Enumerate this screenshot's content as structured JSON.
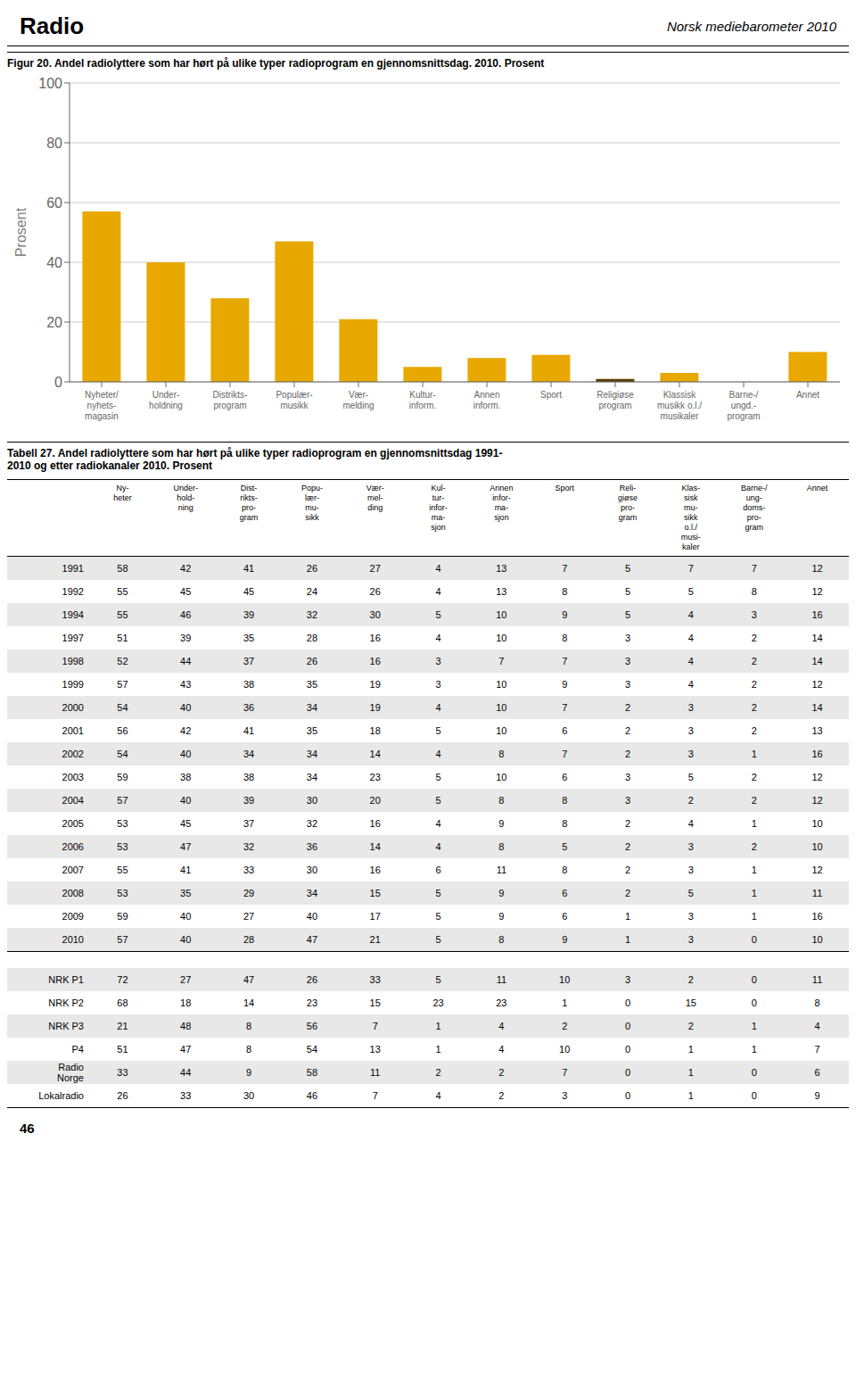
{
  "chart_data": [
    {
      "type": "bar",
      "title": "Figur 20. Andel radiolyttere som har hørt på ulike typer radioprogram en gjennomsnittsdag. 2010. Prosent",
      "annotations": [
        "Radio",
        "Norsk mediebarometer 2010",
        "46"
      ],
      "ylabel": "Prosent",
      "categories": [
        "Nyheter/\nnyhets-\nmagasin",
        "Under-\nholdning",
        "Distrikts-\nprogram",
        "Populær-\nmusikk",
        "Vær-\nmelding",
        "Kultur-\ninform.",
        "Annen\ninform.",
        "Sport",
        "Religiøse\nprogram",
        "Klassisk\nmusikk o.l./\nmusikaler",
        "Barne-/\nungd.-\nprogram",
        "Annet"
      ],
      "values": [
        57,
        40,
        28,
        47,
        21,
        5,
        8,
        9,
        1,
        3,
        0,
        10
      ],
      "colors": [
        "#E8A800",
        "#E8A800",
        "#E8A800",
        "#E8A800",
        "#E8A800",
        "#E8A800",
        "#E8A800",
        "#E8A800",
        "#5C3D00",
        "#E8A800",
        "#5C3D00",
        "#E8A800"
      ],
      "ylim": [
        0,
        100
      ],
      "yticks": [
        0,
        20,
        40,
        60,
        80,
        100
      ],
      "grid": true
    },
    {
      "type": "table",
      "title": "Tabell 27. Andel radiolyttere som har hørt på ulike typer radioprogram en gjennomsnittsdag 1991-\n2010 og etter radiokanaler 2010. Prosent",
      "columns": [
        "Ny-\nheter",
        "Under-\nhold-\nning",
        "Dist-\nrikts-\npro-\ngram",
        "Popu-\nlær-\nmu-\nsikk",
        "Vær-\nmel-\nding",
        "Kul-\ntur-\ninfor-\nma-\nsjon",
        "Annen\ninfor-\nma-\nsjon",
        "Sport",
        "Reli-\ngiøse\npro-\ngram",
        "Klas-\nsisk\nmu-\nsikk\no.l./\nmusi-\nkaler",
        "Barne-/\nung-\ndoms-\npro-\ngram",
        "Annet"
      ],
      "sections": [
        {
          "categories": [
            "1991",
            "1992",
            "1994",
            "1997",
            "1998",
            "1999",
            "2000",
            "2001",
            "2002",
            "2003",
            "2004",
            "2005",
            "2006",
            "2007",
            "2008",
            "2009",
            "2010"
          ],
          "values": [
            [
              58,
              42,
              41,
              26,
              27,
              4,
              13,
              7,
              5,
              7,
              7,
              12
            ],
            [
              55,
              45,
              45,
              24,
              26,
              4,
              13,
              8,
              5,
              5,
              8,
              12
            ],
            [
              55,
              46,
              39,
              32,
              30,
              5,
              10,
              9,
              5,
              4,
              3,
              16
            ],
            [
              51,
              39,
              35,
              28,
              16,
              4,
              10,
              8,
              3,
              4,
              2,
              14
            ],
            [
              52,
              44,
              37,
              26,
              16,
              3,
              7,
              7,
              3,
              4,
              2,
              14
            ],
            [
              57,
              43,
              38,
              35,
              19,
              3,
              10,
              9,
              3,
              4,
              2,
              12
            ],
            [
              54,
              40,
              36,
              34,
              19,
              4,
              10,
              7,
              2,
              3,
              2,
              14
            ],
            [
              56,
              42,
              41,
              35,
              18,
              5,
              10,
              6,
              2,
              3,
              2,
              13
            ],
            [
              54,
              40,
              34,
              34,
              14,
              4,
              8,
              7,
              2,
              3,
              1,
              16
            ],
            [
              59,
              38,
              38,
              34,
              23,
              5,
              10,
              6,
              3,
              5,
              2,
              12
            ],
            [
              57,
              40,
              39,
              30,
              20,
              5,
              8,
              8,
              3,
              2,
              2,
              12
            ],
            [
              53,
              45,
              37,
              32,
              16,
              4,
              9,
              8,
              2,
              4,
              1,
              10
            ],
            [
              53,
              47,
              32,
              36,
              14,
              4,
              8,
              5,
              2,
              3,
              2,
              10
            ],
            [
              55,
              41,
              33,
              30,
              16,
              6,
              11,
              8,
              2,
              3,
              1,
              12
            ],
            [
              53,
              35,
              29,
              34,
              15,
              5,
              9,
              6,
              2,
              5,
              1,
              11
            ],
            [
              59,
              40,
              27,
              40,
              17,
              5,
              9,
              6,
              1,
              3,
              1,
              16
            ],
            [
              57,
              40,
              28,
              47,
              21,
              5,
              8,
              9,
              1,
              3,
              0,
              10
            ]
          ]
        },
        {
          "categories": [
            "NRK P1",
            "NRK P2",
            "NRK P3",
            "P4",
            "Radio\nNorge",
            "Lokalradio"
          ],
          "values": [
            [
              72,
              27,
              47,
              26,
              33,
              5,
              11,
              10,
              3,
              2,
              0,
              11
            ],
            [
              68,
              18,
              14,
              23,
              15,
              23,
              23,
              1,
              0,
              15,
              0,
              8
            ],
            [
              21,
              48,
              8,
              56,
              7,
              1,
              4,
              2,
              0,
              2,
              1,
              4
            ],
            [
              51,
              47,
              8,
              54,
              13,
              1,
              4,
              10,
              0,
              1,
              1,
              7
            ],
            [
              33,
              44,
              9,
              58,
              11,
              2,
              2,
              7,
              0,
              1,
              0,
              6
            ],
            [
              26,
              33,
              30,
              46,
              7,
              4,
              2,
              3,
              0,
              1,
              0,
              9
            ]
          ]
        }
      ]
    }
  ]
}
